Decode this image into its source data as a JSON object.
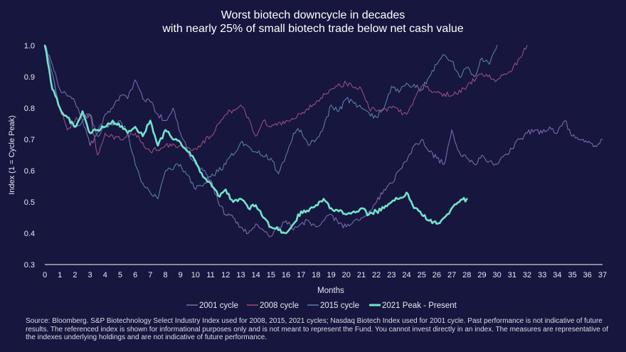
{
  "title_line1": "Worst biotech downcycle in decades",
  "title_line2": "with nearly 25% of small biotech trade below net cash value",
  "footnote": "Source: Bloomberg. S&P Biotechnology Select Industry Index used for 2008, 2015, 2021 cycles; Nasdaq Biotech Index used for 2001 cycle. Past performance is not indicative of future results. The referenced index is shown for informational purposes only and is not meant to represent the Fund. You cannot invest directly in an index. The measures are representative of the indexes underlying holdings and are not indicative of future performance.",
  "colors": {
    "background": "#16163f",
    "axis": "#ffffff",
    "tick_text": "#e8e8f0"
  },
  "chart_data": {
    "type": "line",
    "xlabel": "Months",
    "ylabel": "Index (1 = Cycle Peak)",
    "xlim": [
      0,
      37
    ],
    "ylim": [
      0.3,
      1.0
    ],
    "xticks": [
      0,
      1,
      2,
      3,
      4,
      5,
      6,
      7,
      8,
      9,
      10,
      11,
      12,
      13,
      14,
      15,
      16,
      17,
      18,
      19,
      20,
      21,
      22,
      23,
      24,
      25,
      26,
      27,
      28,
      29,
      30,
      31,
      32,
      33,
      34,
      35,
      36,
      37
    ],
    "yticks": [
      0.3,
      0.4,
      0.5,
      0.6,
      0.7,
      0.8,
      0.9,
      1.0
    ],
    "ytick_labels": [
      "0.3",
      "0.4",
      "0.5",
      "0.6",
      "0.7",
      "0.8",
      "0.9",
      "1.0"
    ],
    "legend_position": "bottom",
    "series": [
      {
        "name": "2001 cycle",
        "color": "#7a6aa8",
        "width": 1.1,
        "x": [
          0,
          0.5,
          1,
          2,
          2.5,
          3,
          3.5,
          4,
          4.5,
          5,
          5.5,
          6,
          6.5,
          7,
          7.5,
          8,
          8.5,
          9,
          9.5,
          10,
          10.5,
          11,
          11.5,
          12,
          12.5,
          13,
          13.5,
          14,
          14.5,
          15,
          15.5,
          16,
          16.5,
          17,
          17.5,
          18,
          18.5,
          19,
          19.5,
          20,
          20.5,
          21,
          21.5,
          22,
          22.5,
          23,
          23.5,
          24,
          24.5,
          25,
          25.5,
          26,
          26.5,
          27,
          27.5,
          28,
          28.5,
          29,
          29.5,
          30,
          30.5,
          31,
          31.5,
          32,
          32.5,
          33,
          33.5,
          34,
          34.5,
          35,
          35.5,
          36,
          36.5,
          37
        ],
        "values": [
          1.0,
          0.94,
          0.86,
          0.82,
          0.76,
          0.68,
          0.72,
          0.78,
          0.8,
          0.84,
          0.83,
          0.89,
          0.83,
          0.82,
          0.78,
          0.76,
          0.8,
          0.72,
          0.66,
          0.62,
          0.6,
          0.57,
          0.5,
          0.46,
          0.45,
          0.42,
          0.4,
          0.43,
          0.41,
          0.39,
          0.42,
          0.44,
          0.41,
          0.43,
          0.44,
          0.42,
          0.44,
          0.46,
          0.43,
          0.42,
          0.44,
          0.45,
          0.47,
          0.5,
          0.54,
          0.56,
          0.6,
          0.63,
          0.68,
          0.7,
          0.66,
          0.64,
          0.62,
          0.73,
          0.66,
          0.64,
          0.62,
          0.65,
          0.63,
          0.62,
          0.65,
          0.67,
          0.7,
          0.72,
          0.73,
          0.72,
          0.74,
          0.72,
          0.76,
          0.71,
          0.7,
          0.69,
          0.68,
          0.7
        ]
      },
      {
        "name": "2008 cycle",
        "color": "#9a4e7e",
        "width": 1.1,
        "x": [
          0,
          0.5,
          1,
          1.5,
          2,
          3,
          3.5,
          4,
          5,
          6,
          6.5,
          7,
          8,
          9,
          10,
          11,
          11.5,
          12,
          13,
          13.5,
          14,
          14.5,
          15,
          16,
          17,
          18,
          19,
          20,
          21,
          21.5,
          22,
          23,
          24,
          25,
          26,
          27,
          28,
          29,
          30,
          30.5,
          31,
          31.5,
          32
        ],
        "values": [
          1.0,
          0.91,
          0.8,
          0.73,
          0.76,
          0.78,
          0.65,
          0.72,
          0.7,
          0.72,
          0.69,
          0.66,
          0.68,
          0.68,
          0.67,
          0.71,
          0.75,
          0.78,
          0.81,
          0.77,
          0.71,
          0.76,
          0.74,
          0.76,
          0.78,
          0.82,
          0.86,
          0.88,
          0.86,
          0.8,
          0.79,
          0.8,
          0.78,
          0.87,
          0.85,
          0.84,
          0.87,
          0.91,
          0.89,
          0.91,
          0.92,
          0.96,
          1.0
        ]
      },
      {
        "name": "2015 cycle",
        "color": "#5b7ea6",
        "width": 1.1,
        "x": [
          0,
          0.5,
          1,
          2,
          3,
          3.5,
          4,
          5,
          5.5,
          6,
          6.5,
          7,
          7.5,
          8,
          9,
          10,
          11,
          12,
          13,
          14,
          15,
          15.5,
          16,
          16.5,
          17,
          17.5,
          18,
          18.5,
          19,
          19.5,
          20,
          21,
          22,
          22.5,
          23,
          23.5,
          24,
          25,
          25.5,
          26,
          26.5,
          27,
          27.5,
          28,
          28.5,
          29,
          29.5,
          30
        ],
        "values": [
          1.0,
          0.91,
          0.8,
          0.74,
          0.78,
          0.71,
          0.74,
          0.76,
          0.72,
          0.62,
          0.56,
          0.53,
          0.51,
          0.6,
          0.62,
          0.54,
          0.58,
          0.62,
          0.69,
          0.66,
          0.64,
          0.59,
          0.65,
          0.72,
          0.73,
          0.68,
          0.7,
          0.74,
          0.81,
          0.79,
          0.83,
          0.8,
          0.77,
          0.8,
          0.87,
          0.85,
          0.88,
          0.86,
          0.9,
          0.94,
          0.97,
          0.95,
          0.9,
          0.93,
          0.9,
          0.96,
          0.94,
          1.0
        ]
      },
      {
        "name": "2021 Peak - Present",
        "color": "#72e4cc",
        "width": 2.6,
        "x": [
          0,
          0.5,
          1,
          1.5,
          2,
          2.5,
          3,
          3.5,
          4,
          4.5,
          5,
          5.5,
          6,
          6.5,
          7,
          7.5,
          8,
          8.5,
          9,
          9.5,
          10,
          10.5,
          11,
          11.5,
          12,
          12.5,
          13,
          13.5,
          14,
          14.5,
          15,
          15.5,
          16,
          16.5,
          17,
          17.5,
          18,
          18.5,
          19,
          19.5,
          20,
          20.5,
          21,
          21.5,
          22,
          22.5,
          23,
          23.5,
          24,
          24.5,
          25,
          25.5,
          26,
          26.5,
          27,
          27.5,
          28
        ],
        "values": [
          1.0,
          0.86,
          0.8,
          0.77,
          0.74,
          0.79,
          0.72,
          0.73,
          0.74,
          0.76,
          0.74,
          0.72,
          0.74,
          0.71,
          0.76,
          0.68,
          0.73,
          0.7,
          0.69,
          0.66,
          0.63,
          0.58,
          0.56,
          0.52,
          0.54,
          0.5,
          0.51,
          0.48,
          0.49,
          0.45,
          0.42,
          0.41,
          0.4,
          0.43,
          0.47,
          0.47,
          0.49,
          0.51,
          0.48,
          0.47,
          0.46,
          0.47,
          0.48,
          0.46,
          0.47,
          0.48,
          0.5,
          0.51,
          0.53,
          0.48,
          0.46,
          0.44,
          0.43,
          0.45,
          0.48,
          0.5,
          0.51
        ]
      }
    ]
  }
}
